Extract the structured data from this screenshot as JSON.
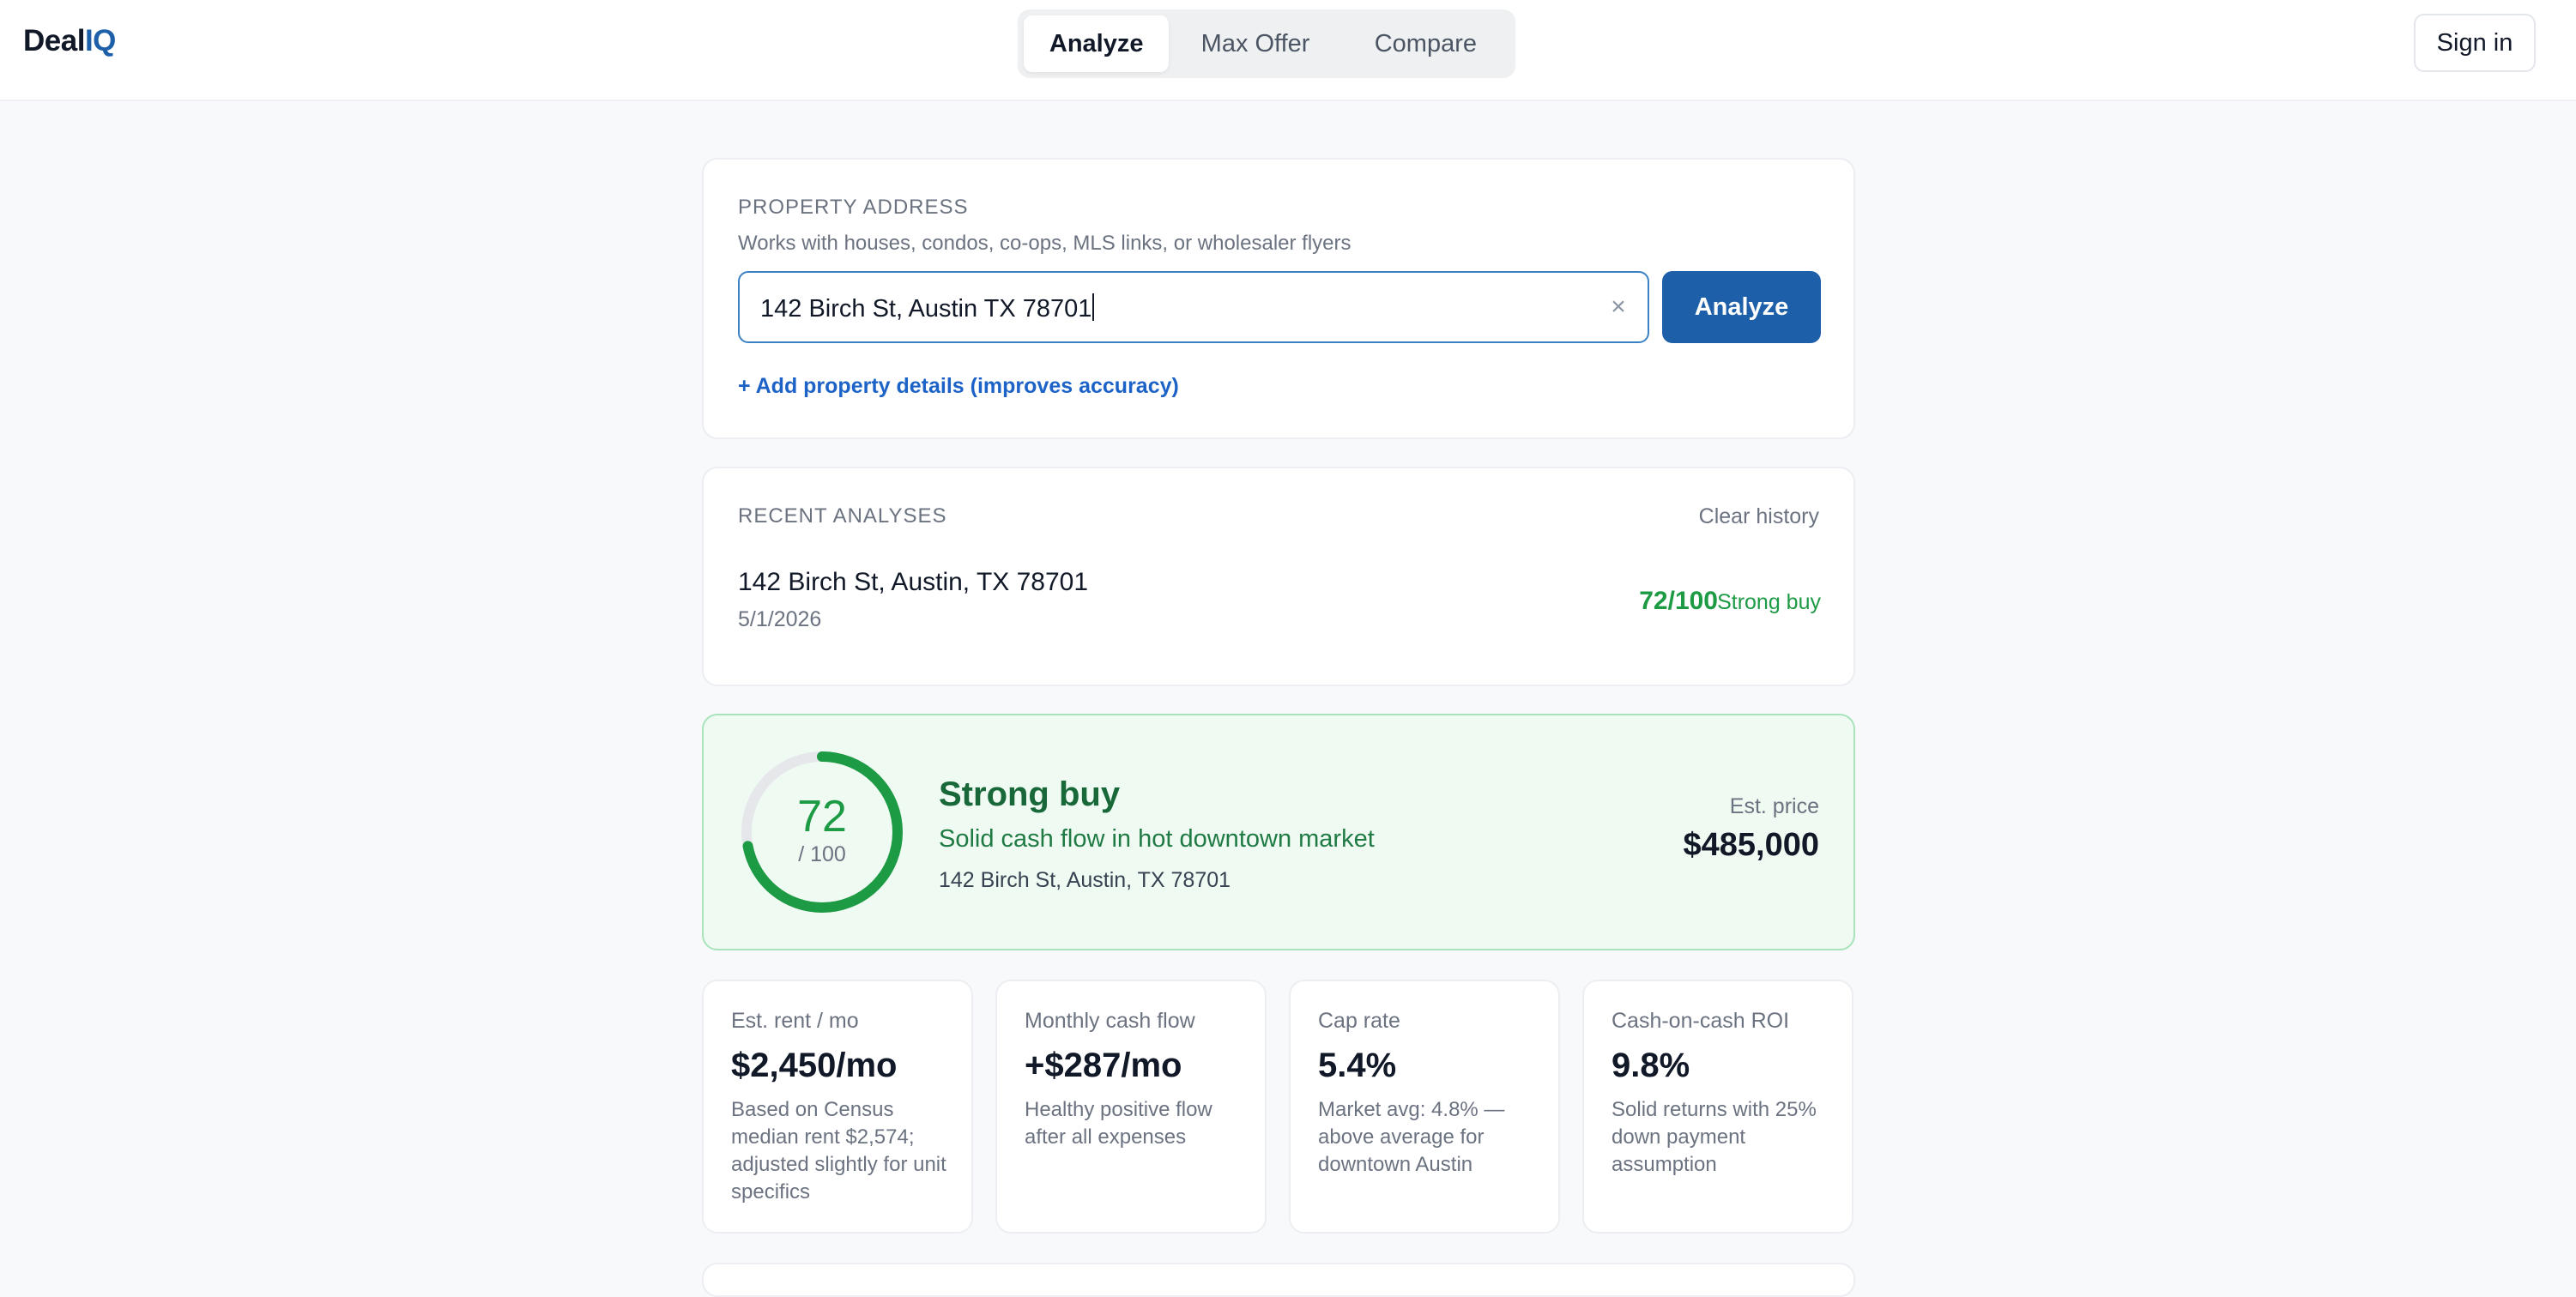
{
  "header": {
    "logo_main": "Deal",
    "logo_accent": "IQ",
    "tabs": [
      {
        "label": "Analyze",
        "active": true
      },
      {
        "label": "Max Offer",
        "active": false
      },
      {
        "label": "Compare",
        "active": false
      }
    ],
    "signin_label": "Sign in"
  },
  "address_form": {
    "section_label": "PROPERTY ADDRESS",
    "hint": "Works with houses, condos, co-ops, MLS links, or wholesaler flyers",
    "input_value": "142 Birch St, Austin TX 78701",
    "clear_icon": "×",
    "analyze_label": "Analyze",
    "add_details_link": "+ Add property details (improves accuracy)"
  },
  "recent": {
    "section_label": "RECENT ANALYSES",
    "clear_label": "Clear history",
    "items": [
      {
        "address": "142 Birch St, Austin, TX 78701",
        "date": "5/1/2026",
        "score": "72/100",
        "verdict": "Strong buy"
      }
    ]
  },
  "result": {
    "score": "72",
    "score_denominator": "/ 100",
    "score_fraction": 0.72,
    "verdict": "Strong buy",
    "summary": "Solid cash flow in hot downtown market",
    "address": "142 Birch St, Austin, TX 78701",
    "price_label": "Est. price",
    "price": "$485,000"
  },
  "metrics": [
    {
      "label": "Est. rent / mo",
      "value": "$2,450/mo",
      "desc": "Based on Census median rent $2,574; adjusted slightly for unit specifics"
    },
    {
      "label": "Monthly cash flow",
      "value": "+$287/mo",
      "desc": "Healthy positive flow after all expenses"
    },
    {
      "label": "Cap rate",
      "value": "5.4%",
      "desc": "Market avg: 4.8% — above average for downtown Austin"
    },
    {
      "label": "Cash-on-cash ROI",
      "value": "9.8%",
      "desc": "Solid returns with 25% down payment assumption"
    }
  ],
  "colors": {
    "brand": "#1d5fa8",
    "positive": "#1d9a44",
    "score_bg": "#effbf2",
    "gauge_track": "#e5e7eb"
  }
}
